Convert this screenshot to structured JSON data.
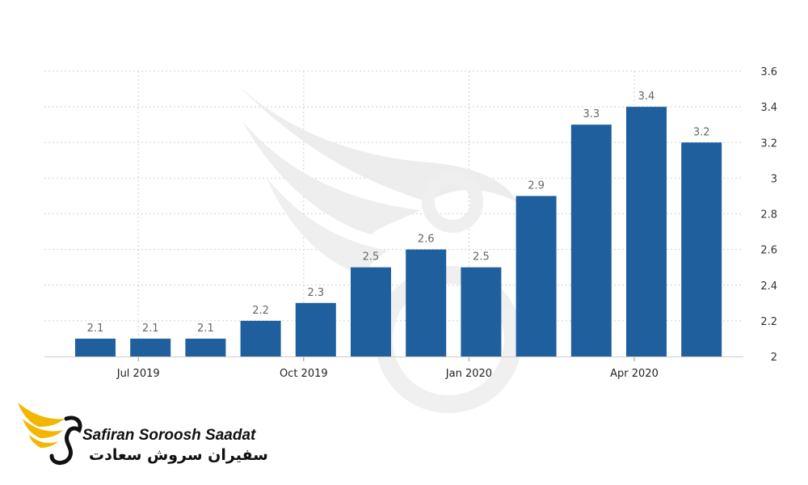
{
  "chart_data": {
    "type": "bar",
    "categories": [
      "Jun 2019",
      "Jul 2019",
      "Aug 2019",
      "Sep 2019",
      "Oct 2019",
      "Nov 2019",
      "Dec 2019",
      "Jan 2020",
      "Feb 2020",
      "Mar 2020",
      "Apr 2020",
      "May 2020"
    ],
    "values": [
      2.1,
      2.1,
      2.1,
      2.2,
      2.3,
      2.5,
      2.6,
      2.5,
      2.9,
      3.3,
      3.4,
      3.2
    ],
    "data_labels": [
      "2.1",
      "2.1",
      "2.1",
      "2.2",
      "2.3",
      "2.5",
      "2.6",
      "2.5",
      "2.9",
      "3.3",
      "3.4",
      "3.2"
    ],
    "x_tick_labels": [
      "Jul 2019",
      "Oct 2019",
      "Jan 2020",
      "Apr 2020"
    ],
    "y_ticks": [
      "2",
      "2.2",
      "2.4",
      "2.6",
      "2.8",
      "3",
      "3.2",
      "3.4",
      "3.6"
    ],
    "ylim": [
      2,
      3.6
    ],
    "y_axis_side": "right",
    "grid": "horizontal dotted and vertical dotted",
    "bar_color": "#1f5f9e",
    "title": "",
    "xlabel": "",
    "ylabel": ""
  },
  "logo": {
    "name_en": "Safiran Soroosh Saadat",
    "name_fa": "سفیران سروش سعادت",
    "accent_color": "#f2b705"
  }
}
